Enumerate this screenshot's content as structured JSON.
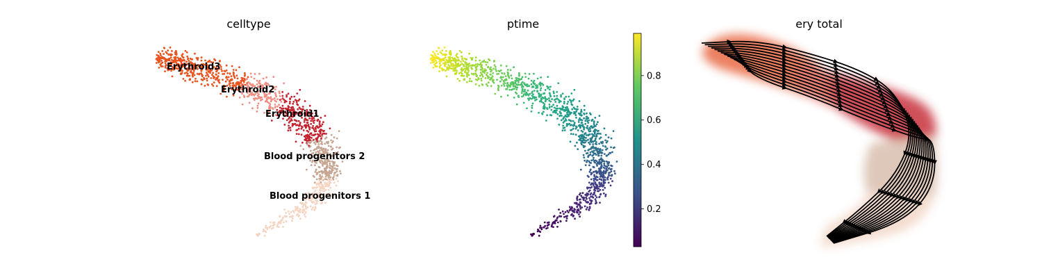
{
  "chart_data": [
    {
      "type": "scatter",
      "title": "celltype",
      "color_by": "categorical",
      "legend": "on data",
      "categories": [
        {
          "name": "Erythroid3",
          "color": "#e8531f"
        },
        {
          "name": "Erythroid2",
          "color": "#f08e84"
        },
        {
          "name": "Erythroid1",
          "color": "#c3232f"
        },
        {
          "name": "Blood progenitors 2",
          "color": "#c6a693"
        },
        {
          "name": "Blood progenitors 1",
          "color": "#f5d4c2"
        }
      ]
    },
    {
      "type": "scatter",
      "title": "ptime",
      "color_by": "continuous",
      "colormap": "viridis",
      "colorbar": {
        "ticks": [
          "0.2",
          "0.4",
          "0.6",
          "0.8"
        ],
        "range": [
          0.03,
          0.99
        ]
      }
    },
    {
      "type": "scatter",
      "title": "ery total",
      "overlay": "velocity streamlines",
      "stream_color": "#000000"
    }
  ]
}
